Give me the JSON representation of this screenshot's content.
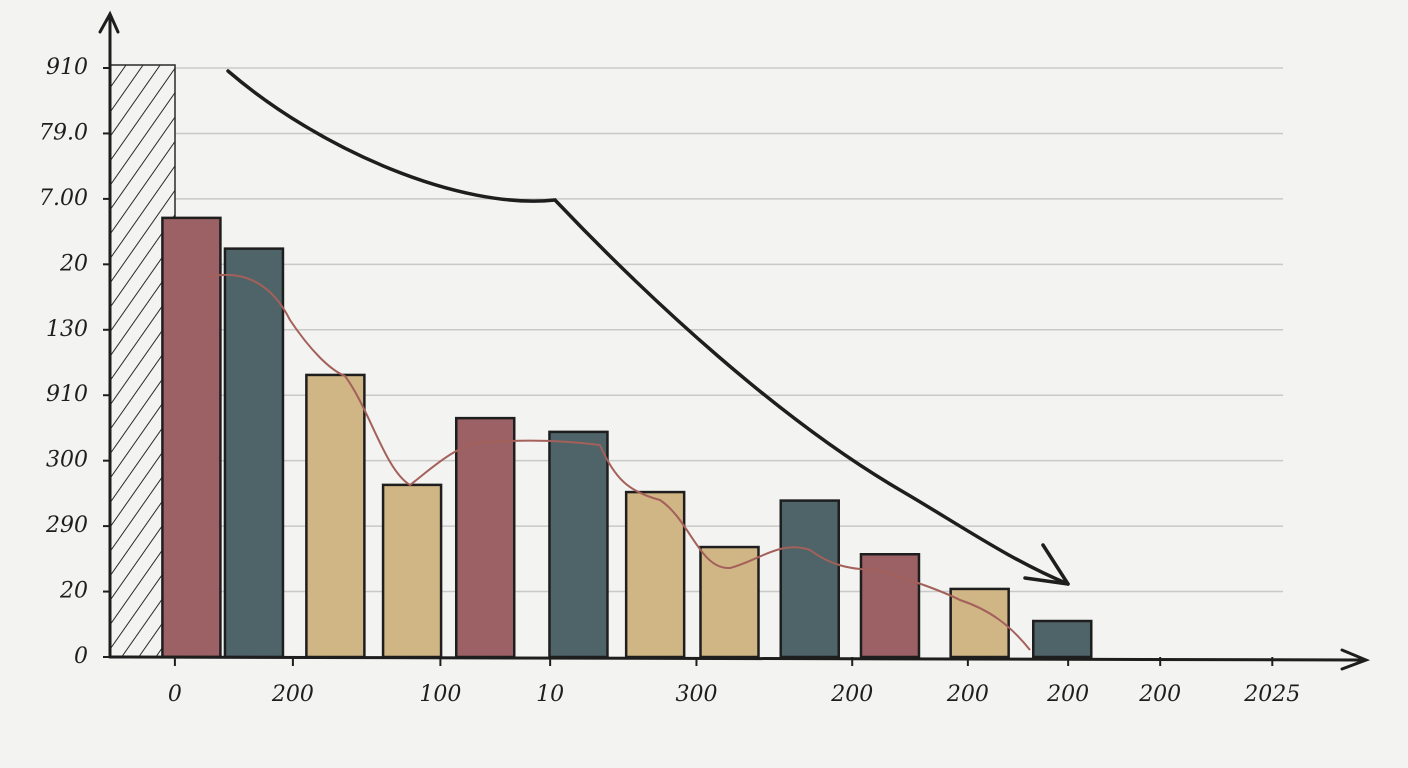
{
  "chart_data": {
    "type": "bar",
    "x": [
      6.9,
      12.2,
      19.1,
      25.6,
      31.8,
      39.7,
      46.2,
      52.5,
      59.3,
      66.1,
      73.7,
      80.7
    ],
    "values": [
      6.71,
      6.24,
      4.31,
      2.63,
      3.65,
      3.44,
      2.52,
      1.68,
      2.39,
      1.57,
      1.04,
      0.55
    ],
    "colors": [
      "#9b6164",
      "#4e6468",
      "#d0b684",
      "#d0b684",
      "#9b6164",
      "#4e6468",
      "#d0b684",
      "#d0b684",
      "#4e6468",
      "#9b6164",
      "#d0b684",
      "#4e6468"
    ],
    "xlim": [
      0,
      100
    ],
    "xticks": [
      {
        "value": 5.5,
        "label": "0"
      },
      {
        "value": 15.5,
        "label": "200"
      },
      {
        "value": 28,
        "label": "100"
      },
      {
        "value": 37.3,
        "label": "10"
      },
      {
        "value": 49.7,
        "label": "300"
      },
      {
        "value": 62.9,
        "label": "200"
      },
      {
        "value": 72.7,
        "label": "200"
      },
      {
        "value": 81.2,
        "label": "200"
      },
      {
        "value": 89,
        "label": "200"
      },
      {
        "value": 98.5,
        "label": "2025"
      }
    ],
    "ylim": [
      0,
      9
    ],
    "yticks": [
      0,
      {
        "value": 1,
        "label": "20"
      },
      {
        "value": 2,
        "label": "290"
      },
      {
        "value": 3,
        "label": "300"
      },
      {
        "value": 4,
        "label": "910"
      },
      {
        "value": 5,
        "label": "130"
      },
      {
        "value": 6,
        "label": "20"
      },
      {
        "value": 7,
        "label": "7.00"
      },
      {
        "value": 8,
        "label": "79.0"
      },
      {
        "value": 9,
        "label": "910"
      }
    ],
    "grid": true
  }
}
